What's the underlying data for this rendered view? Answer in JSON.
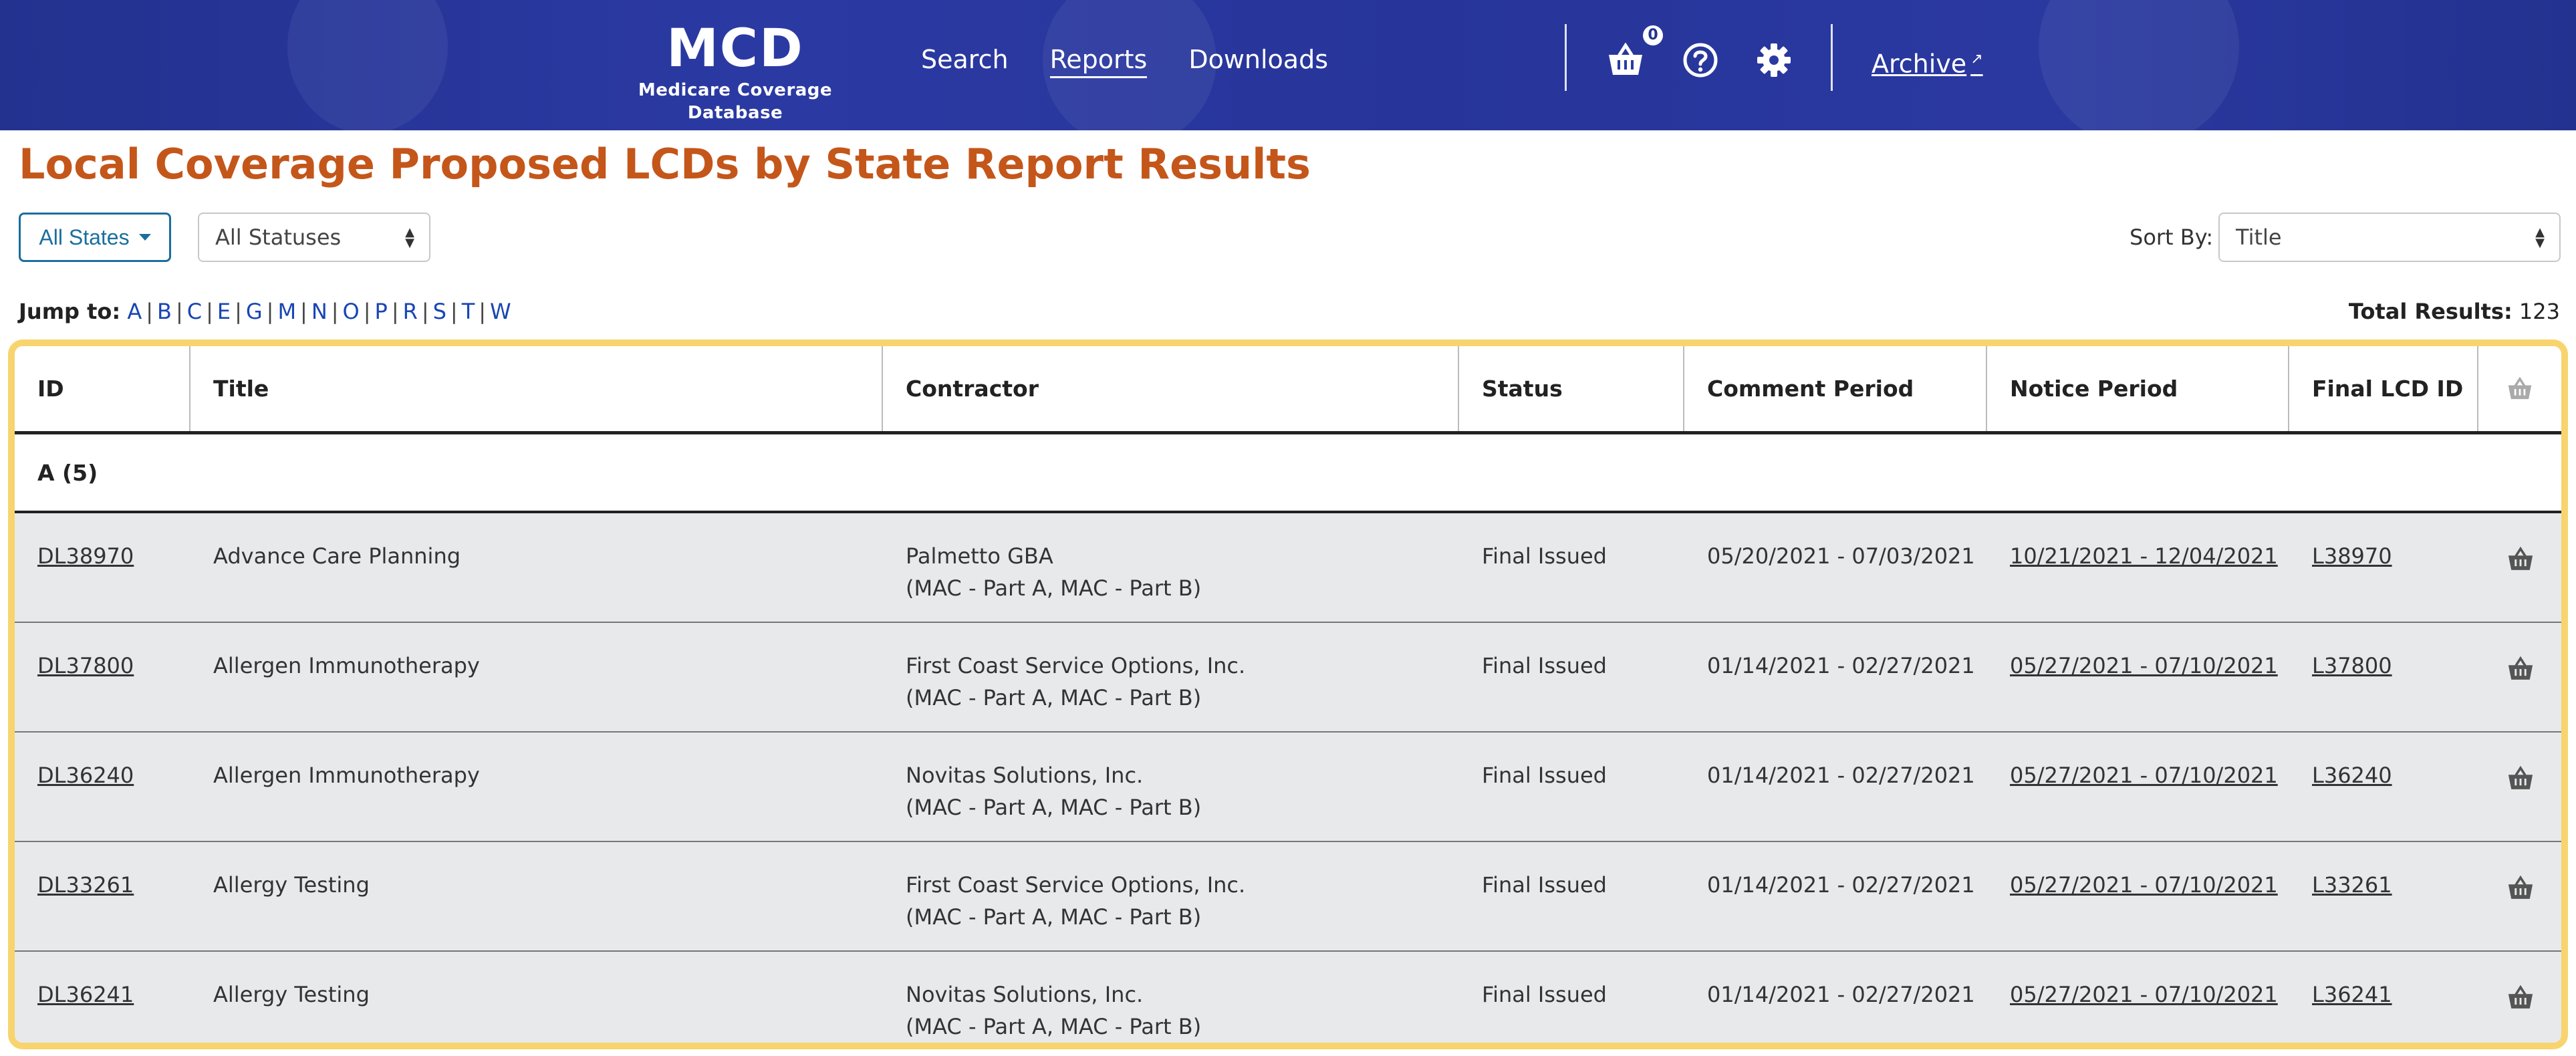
{
  "header": {
    "brand_title": "MCD",
    "brand_subtitle": "Medicare Coverage Database",
    "nav": [
      {
        "label": "Search",
        "active": false
      },
      {
        "label": "Reports",
        "active": true
      },
      {
        "label": "Downloads",
        "active": false
      }
    ],
    "cart_count": "0",
    "archive_label": "Archive",
    "icons": [
      "basket-icon",
      "help-icon",
      "gear-icon",
      "external-link-icon"
    ]
  },
  "page": {
    "title": "Local Coverage Proposed LCDs by State Report Results"
  },
  "filters": {
    "states_button": "All States",
    "status_select": "All Statuses",
    "sort_label": "Sort By:",
    "sort_select": "Title"
  },
  "jump": {
    "label": "Jump to:",
    "letters": [
      "A",
      "B",
      "C",
      "E",
      "G",
      "M",
      "N",
      "O",
      "P",
      "R",
      "S",
      "T",
      "W"
    ]
  },
  "total": {
    "label": "Total Results:",
    "value": "123"
  },
  "table": {
    "columns": [
      "ID",
      "Title",
      "Contractor",
      "Status",
      "Comment Period",
      "Notice Period",
      "Final LCD ID"
    ],
    "group_label": "A (5)",
    "rows": [
      {
        "id": "DL38970",
        "title": "Advance Care Planning",
        "contractor": "Palmetto GBA",
        "contractor_type": "(MAC - Part A, MAC - Part B)",
        "status": "Final Issued",
        "comment_period": "05/20/2021 - 07/03/2021",
        "notice_period": "10/21/2021 - 12/04/2021",
        "final_lcd_id": "L38970"
      },
      {
        "id": "DL37800",
        "title": "Allergen Immunotherapy",
        "contractor": "First Coast Service Options, Inc.",
        "contractor_type": "(MAC - Part A, MAC - Part B)",
        "status": "Final Issued",
        "comment_period": "01/14/2021 - 02/27/2021",
        "notice_period": "05/27/2021 - 07/10/2021",
        "final_lcd_id": "L37800"
      },
      {
        "id": "DL36240",
        "title": "Allergen Immunotherapy",
        "contractor": "Novitas Solutions, Inc.",
        "contractor_type": "(MAC - Part A, MAC - Part B)",
        "status": "Final Issued",
        "comment_period": "01/14/2021 - 02/27/2021",
        "notice_period": "05/27/2021 - 07/10/2021",
        "final_lcd_id": "L36240"
      },
      {
        "id": "DL33261",
        "title": "Allergy Testing",
        "contractor": "First Coast Service Options, Inc.",
        "contractor_type": "(MAC - Part A, MAC - Part B)",
        "status": "Final Issued",
        "comment_period": "01/14/2021 - 02/27/2021",
        "notice_period": "05/27/2021 - 07/10/2021",
        "final_lcd_id": "L33261"
      },
      {
        "id": "DL36241",
        "title": "Allergy Testing",
        "contractor": "Novitas Solutions, Inc.",
        "contractor_type": "(MAC - Part A, MAC - Part B)",
        "status": "Final Issued",
        "comment_period": "01/14/2021 - 02/27/2021",
        "notice_period": "05/27/2021 - 07/10/2021",
        "final_lcd_id": "L36241"
      }
    ]
  },
  "colors": {
    "header_bg": "#2b3aa3",
    "title_orange": "#c4561a",
    "link_blue": "#1846b4",
    "table_highlight": "#f7d46e",
    "row_bg": "#e8e9eb"
  }
}
